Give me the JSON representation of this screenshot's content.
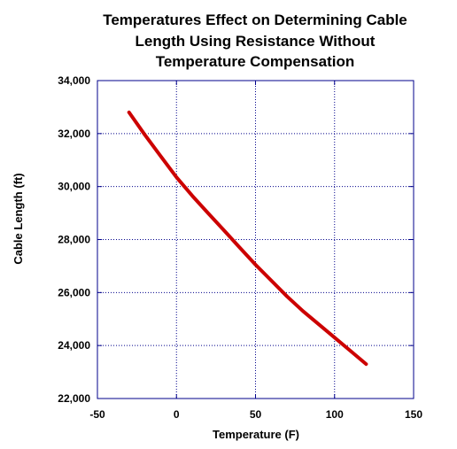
{
  "chart_data": {
    "type": "line",
    "title_lines": [
      "Temperatures Effect on Determining Cable",
      "Length Using Resistance Without",
      "Temperature Compensation"
    ],
    "xlabel": "Temperature (F)",
    "ylabel": "Cable Length (ft)",
    "xlim": [
      -50,
      150
    ],
    "ylim": [
      22000,
      34000
    ],
    "x_ticks": [
      -50,
      0,
      50,
      100,
      150
    ],
    "y_ticks": [
      22000,
      24000,
      26000,
      28000,
      30000,
      32000,
      34000
    ],
    "x_tick_labels": [
      "-50",
      "0",
      "50",
      "100",
      "150"
    ],
    "y_tick_labels": [
      "22,000",
      "24,000",
      "26,000",
      "28,000",
      "30,000",
      "32,000",
      "34,000"
    ],
    "grid": true,
    "series": [
      {
        "color": "#cc0000",
        "x": [
          -30,
          -20,
          -10,
          0,
          10,
          20,
          30,
          40,
          50,
          60,
          70,
          80,
          90,
          100,
          110,
          120
        ],
        "y": [
          32800,
          31950,
          31150,
          30350,
          29650,
          29000,
          28350,
          27700,
          27050,
          26450,
          25850,
          25300,
          24800,
          24300,
          23800,
          23300
        ]
      }
    ]
  },
  "colors": {
    "axis": "#00008b",
    "grid": "#00008b",
    "line": "#cc0000",
    "background": "#ffffff"
  }
}
